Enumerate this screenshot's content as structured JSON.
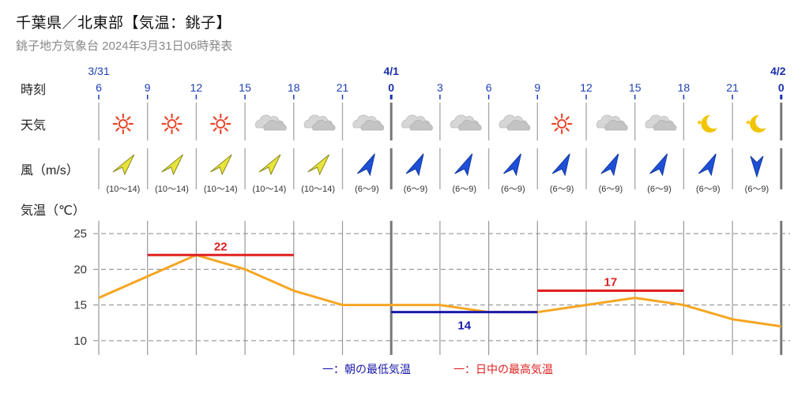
{
  "header": {
    "title": "千葉県／北東部【気温：銚子】",
    "subtitle": "銚子地方気象台 2024年3月31日06時発表"
  },
  "rows": {
    "time": "時刻",
    "weather": "天気",
    "wind": "風（m/s）",
    "temp": "気温（℃）"
  },
  "colors": {
    "tick_blue": "#1d3fb3",
    "line_orange": "#f5a623",
    "low_blue": "#1a1aaa",
    "high_red": "#e02020",
    "wind_yellow": "#e8e43a",
    "wind_blue": "#1e4fd8"
  },
  "forecast": [
    {
      "date": "3/31",
      "hour": "6",
      "weather": "sunny",
      "weather_icon": "sun-icon",
      "wind": "(10～14)",
      "wind_color": "yellow",
      "wind_dir": "sw"
    },
    {
      "date": "",
      "hour": "9",
      "weather": "sunny",
      "weather_icon": "sun-icon",
      "wind": "(10～14)",
      "wind_color": "yellow",
      "wind_dir": "sw"
    },
    {
      "date": "",
      "hour": "12",
      "weather": "sunny",
      "weather_icon": "sun-icon",
      "wind": "(10～14)",
      "wind_color": "yellow",
      "wind_dir": "sw"
    },
    {
      "date": "",
      "hour": "15",
      "weather": "cloudy",
      "weather_icon": "cloud-icon",
      "wind": "(10～14)",
      "wind_color": "yellow",
      "wind_dir": "sw"
    },
    {
      "date": "",
      "hour": "18",
      "weather": "cloudy",
      "weather_icon": "cloud-icon",
      "wind": "(10～14)",
      "wind_color": "yellow",
      "wind_dir": "sw"
    },
    {
      "date": "",
      "hour": "21",
      "weather": "cloudy",
      "weather_icon": "cloud-icon",
      "wind": "(6～9)",
      "wind_color": "blue",
      "wind_dir": "sw"
    },
    {
      "date": "4/1",
      "hour": "0",
      "weather": "cloudy",
      "weather_icon": "cloud-icon",
      "wind": "(6～9)",
      "wind_color": "blue",
      "wind_dir": "sw"
    },
    {
      "date": "",
      "hour": "3",
      "weather": "cloudy",
      "weather_icon": "cloud-icon",
      "wind": "(6～9)",
      "wind_color": "blue",
      "wind_dir": "sw"
    },
    {
      "date": "",
      "hour": "6",
      "weather": "cloudy",
      "weather_icon": "cloud-icon",
      "wind": "(6～9)",
      "wind_color": "blue",
      "wind_dir": "sw"
    },
    {
      "date": "",
      "hour": "9",
      "weather": "sunny",
      "weather_icon": "sun-icon",
      "wind": "(6～9)",
      "wind_color": "blue",
      "wind_dir": "sw"
    },
    {
      "date": "",
      "hour": "12",
      "weather": "cloudy",
      "weather_icon": "cloud-icon",
      "wind": "(6～9)",
      "wind_color": "blue",
      "wind_dir": "sw"
    },
    {
      "date": "",
      "hour": "15",
      "weather": "cloudy",
      "weather_icon": "cloud-icon",
      "wind": "(6～9)",
      "wind_color": "blue",
      "wind_dir": "sw"
    },
    {
      "date": "",
      "hour": "18",
      "weather": "clear-night",
      "weather_icon": "moon-icon",
      "wind": "(6～9)",
      "wind_color": "blue",
      "wind_dir": "sw"
    },
    {
      "date": "",
      "hour": "21",
      "weather": "clear-night",
      "weather_icon": "moon-icon",
      "wind": "(6～9)",
      "wind_color": "blue",
      "wind_dir": "s"
    },
    {
      "date": "4/2",
      "hour": "0"
    }
  ],
  "chart_data": {
    "type": "line",
    "x": [
      "6",
      "9",
      "12",
      "15",
      "18",
      "21",
      "0",
      "3",
      "6",
      "9",
      "12",
      "15",
      "18",
      "21",
      "0"
    ],
    "series": [
      {
        "values": [
          16,
          19,
          22,
          20,
          17,
          15,
          15,
          15,
          14,
          14,
          15,
          16,
          15,
          13,
          12
        ]
      }
    ],
    "daily_low": [
      {
        "label": "14",
        "value": 14,
        "from": "0",
        "to": "9"
      }
    ],
    "daily_high": [
      {
        "label": "22",
        "value": 22,
        "from": "9",
        "to": "18"
      },
      {
        "label": "17",
        "value": 17,
        "from": "9",
        "to": "18"
      }
    ],
    "ylim": [
      8,
      27
    ],
    "yticks": [
      10,
      15,
      20,
      25
    ],
    "grid": true
  },
  "legend": {
    "low": "一：朝の最低気温",
    "high": "一：日中の最高気温"
  }
}
